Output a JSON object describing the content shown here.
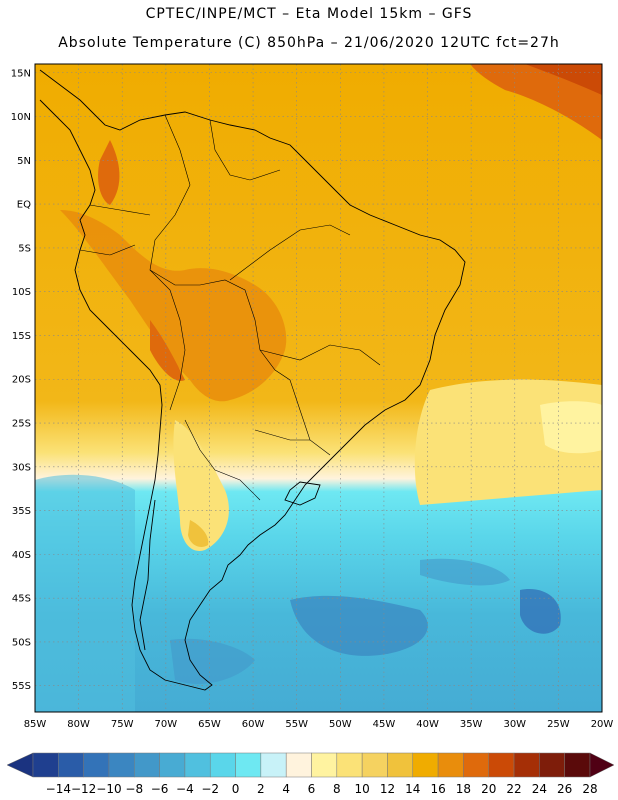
{
  "header": {
    "title_line1": "CPTEC/INPE/MCT –  Eta Model 15km – GFS",
    "title_line2": "Absolute Temperature (C) 850hPa – 21/06/2020 12UTC fct=27h"
  },
  "map": {
    "lat_labels": [
      "15N",
      "10N",
      "5N",
      "EQ",
      "5S",
      "10S",
      "15S",
      "20S",
      "25S",
      "30S",
      "35S",
      "40S",
      "45S",
      "50S",
      "55S"
    ],
    "lon_labels": [
      "85W",
      "80W",
      "75W",
      "70W",
      "65W",
      "60W",
      "55W",
      "50W",
      "45W",
      "40W",
      "35W",
      "30W",
      "25W",
      "20W"
    ],
    "lat_values": [
      15,
      10,
      5,
      0,
      -5,
      -10,
      -15,
      -20,
      -25,
      -30,
      -35,
      -40,
      -45,
      -50,
      -55
    ],
    "lon_values": [
      -85,
      -80,
      -75,
      -70,
      -65,
      -60,
      -55,
      -50,
      -45,
      -40,
      -35,
      -30,
      -25,
      -20
    ],
    "extent": {
      "west": -85,
      "east": -20,
      "north": 16,
      "south": -58
    },
    "grid": true
  },
  "colorbar": {
    "labels": [
      "-14",
      "-12",
      "-10",
      "-8",
      "-6",
      "-4",
      "-2",
      "0",
      "2",
      "4",
      "6",
      "8",
      "10",
      "12",
      "14",
      "16",
      "18",
      "20",
      "22",
      "24",
      "26",
      "28"
    ],
    "colors": [
      "#1f3f8f",
      "#2a5ca8",
      "#3373b8",
      "#3b86c1",
      "#4298c9",
      "#48abd3",
      "#50c0df",
      "#5ad6ea",
      "#6ee8f2",
      "#c8f2f8",
      "#fff3dd",
      "#fff3a0",
      "#fbe277",
      "#f5d260",
      "#f0c23c",
      "#f0ac00",
      "#e98d0c",
      "#df6a0c",
      "#cb4a06",
      "#a52f06",
      "#7e1d0a",
      "#5a0a0a"
    ],
    "end_low_color": "#1b3380",
    "end_high_color": "#500014"
  }
}
